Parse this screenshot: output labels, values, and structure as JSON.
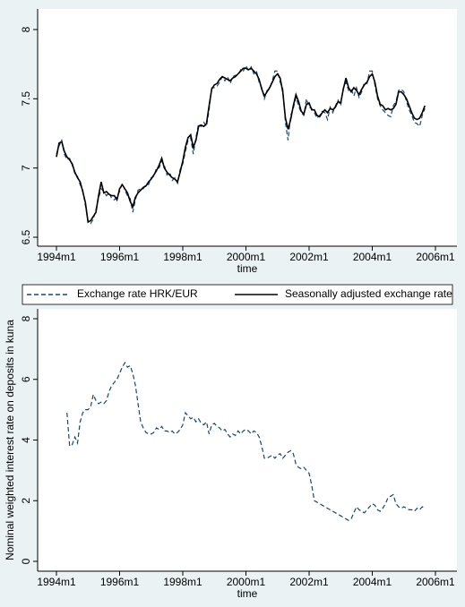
{
  "chart_data": [
    {
      "type": "line",
      "xlabel": "time",
      "x": [
        "1994m1",
        "1994m2",
        "1994m3",
        "1994m4",
        "1994m5",
        "1994m6",
        "1994m7",
        "1994m8",
        "1994m9",
        "1994m10",
        "1994m11",
        "1994m12",
        "1995m1",
        "1995m2",
        "1995m3",
        "1995m4",
        "1995m5",
        "1995m6",
        "1995m7",
        "1995m8",
        "1995m9",
        "1995m10",
        "1995m11",
        "1995m12",
        "1996m1",
        "1996m2",
        "1996m3",
        "1996m4",
        "1996m5",
        "1996m6",
        "1996m7",
        "1996m8",
        "1996m9",
        "1996m10",
        "1996m11",
        "1996m12",
        "1997m1",
        "1997m2",
        "1997m3",
        "1997m4",
        "1997m5",
        "1997m6",
        "1997m7",
        "1997m8",
        "1997m9",
        "1997m10",
        "1997m11",
        "1997m12",
        "1998m1",
        "1998m2",
        "1998m3",
        "1998m4",
        "1998m5",
        "1998m6",
        "1998m7",
        "1998m8",
        "1998m9",
        "1998m10",
        "1998m11",
        "1998m12",
        "1999m1",
        "1999m2",
        "1999m3",
        "1999m4",
        "1999m5",
        "1999m6",
        "1999m7",
        "1999m8",
        "1999m9",
        "1999m10",
        "1999m11",
        "1999m12",
        "2000m1",
        "2000m2",
        "2000m3",
        "2000m4",
        "2000m5",
        "2000m6",
        "2000m7",
        "2000m8",
        "2000m9",
        "2000m10",
        "2000m11",
        "2000m12",
        "2001m1",
        "2001m2",
        "2001m3",
        "2001m4",
        "2001m5",
        "2001m6",
        "2001m7",
        "2001m8",
        "2001m9",
        "2001m10",
        "2001m11",
        "2001m12",
        "2002m1",
        "2002m2",
        "2002m3",
        "2002m4",
        "2002m5",
        "2002m6",
        "2002m7",
        "2002m8",
        "2002m9",
        "2002m10",
        "2002m11",
        "2002m12",
        "2003m1",
        "2003m2",
        "2003m3",
        "2003m4",
        "2003m5",
        "2003m6",
        "2003m7",
        "2003m8",
        "2003m9",
        "2003m10",
        "2003m11",
        "2003m12",
        "2004m1",
        "2004m2",
        "2004m3",
        "2004m4",
        "2004m5",
        "2004m6",
        "2004m7",
        "2004m8",
        "2004m9",
        "2004m10",
        "2004m11",
        "2004m12",
        "2005m1",
        "2005m2",
        "2005m3",
        "2005m4",
        "2005m5",
        "2005m6",
        "2005m7",
        "2005m8",
        "2005m9"
      ],
      "series": [
        {
          "name": "Exchange rate HRK/EUR",
          "color": "#1a476f",
          "dash": "dashed",
          "values": [
            7.1,
            7.16,
            7.2,
            7.1,
            7.06,
            7.07,
            7.02,
            6.96,
            6.94,
            6.88,
            6.84,
            6.73,
            6.62,
            6.6,
            6.63,
            6.7,
            6.78,
            6.85,
            6.83,
            6.8,
            6.82,
            6.78,
            6.77,
            6.79,
            6.83,
            6.89,
            6.84,
            6.8,
            6.78,
            6.68,
            6.77,
            6.84,
            6.85,
            6.85,
            6.88,
            6.88,
            6.93,
            6.94,
            7.0,
            7.0,
            7.05,
            7.02,
            6.95,
            6.97,
            6.91,
            6.93,
            6.89,
            6.99,
            7.03,
            7.12,
            7.2,
            7.22,
            7.1,
            7.22,
            7.32,
            7.3,
            7.33,
            7.3,
            7.42,
            7.58,
            7.58,
            7.59,
            7.62,
            7.66,
            7.63,
            7.66,
            7.61,
            7.66,
            7.67,
            7.67,
            7.71,
            7.7,
            7.74,
            7.7,
            7.73,
            7.68,
            7.7,
            7.62,
            7.58,
            7.5,
            7.56,
            7.57,
            7.63,
            7.7,
            7.7,
            7.62,
            7.57,
            7.33,
            7.2,
            7.38,
            7.43,
            7.51,
            7.45,
            7.4,
            7.38,
            7.5,
            7.44,
            7.43,
            7.4,
            7.36,
            7.38,
            7.41,
            7.4,
            7.35,
            7.44,
            7.4,
            7.45,
            7.49,
            7.45,
            7.58,
            7.62,
            7.56,
            7.57,
            7.52,
            7.58,
            7.51,
            7.55,
            7.62,
            7.61,
            7.7,
            7.7,
            7.6,
            7.5,
            7.45,
            7.42,
            7.4,
            7.38,
            7.37,
            7.45,
            7.48,
            7.56,
            7.57,
            7.55,
            7.48,
            7.42,
            7.38,
            7.33,
            7.32,
            7.3,
            7.38,
            7.43
          ]
        },
        {
          "name": "Seasonally adjusted exchange rate",
          "color": "#000000",
          "dash": "solid",
          "values": [
            7.08,
            7.18,
            7.19,
            7.12,
            7.08,
            7.06,
            7.03,
            6.97,
            6.93,
            6.9,
            6.83,
            6.75,
            6.61,
            6.62,
            6.65,
            6.68,
            6.8,
            6.9,
            6.82,
            6.83,
            6.81,
            6.8,
            6.8,
            6.77,
            6.85,
            6.88,
            6.85,
            6.82,
            6.76,
            6.72,
            6.79,
            6.82,
            6.84,
            6.86,
            6.87,
            6.9,
            6.92,
            6.95,
            6.98,
            7.02,
            7.07,
            7.0,
            6.97,
            6.95,
            6.93,
            6.92,
            6.9,
            6.97,
            7.05,
            7.15,
            7.22,
            7.24,
            7.15,
            7.2,
            7.3,
            7.31,
            7.3,
            7.32,
            7.45,
            7.57,
            7.6,
            7.61,
            7.64,
            7.66,
            7.65,
            7.64,
            7.63,
            7.65,
            7.66,
            7.68,
            7.7,
            7.72,
            7.72,
            7.71,
            7.72,
            7.7,
            7.68,
            7.64,
            7.57,
            7.52,
            7.55,
            7.58,
            7.62,
            7.66,
            7.68,
            7.65,
            7.55,
            7.36,
            7.28,
            7.35,
            7.45,
            7.53,
            7.48,
            7.41,
            7.39,
            7.46,
            7.47,
            7.42,
            7.42,
            7.38,
            7.37,
            7.4,
            7.42,
            7.4,
            7.43,
            7.42,
            7.44,
            7.48,
            7.47,
            7.57,
            7.65,
            7.58,
            7.55,
            7.58,
            7.56,
            7.53,
            7.57,
            7.6,
            7.62,
            7.66,
            7.68,
            7.62,
            7.52,
            7.46,
            7.45,
            7.42,
            7.43,
            7.42,
            7.43,
            7.46,
            7.55,
            7.55,
            7.53,
            7.5,
            7.45,
            7.4,
            7.36,
            7.35,
            7.36,
            7.4,
            7.45
          ]
        }
      ],
      "xlim": [
        "1994m1",
        "2006m1"
      ],
      "xticks": [
        "1994m1",
        "1996m1",
        "1998m1",
        "2000m1",
        "2002m1",
        "2004m1",
        "2006m1"
      ],
      "ylim": [
        6.5,
        8
      ],
      "yticks": [
        6.5,
        7,
        7.5,
        8
      ],
      "grid": false,
      "legend": "bottom"
    },
    {
      "type": "line",
      "xlabel": "time",
      "ylabel": "Nominal weighted interest rate on deposits in kuna",
      "x": [
        "1994m5",
        "1994m6",
        "1994m7",
        "1994m8",
        "1994m9",
        "1994m10",
        "1994m11",
        "1994m12",
        "1995m1",
        "1995m2",
        "1995m3",
        "1995m4",
        "1995m5",
        "1995m6",
        "1995m7",
        "1995m8",
        "1995m9",
        "1995m10",
        "1995m11",
        "1995m12",
        "1996m1",
        "1996m2",
        "1996m3",
        "1996m4",
        "1996m5",
        "1996m6",
        "1996m7",
        "1996m8",
        "1996m9",
        "1996m10",
        "1996m11",
        "1996m12",
        "1997m1",
        "1997m2",
        "1997m3",
        "1997m4",
        "1997m5",
        "1997m6",
        "1997m7",
        "1997m8",
        "1997m9",
        "1997m10",
        "1997m11",
        "1997m12",
        "1998m1",
        "1998m2",
        "1998m3",
        "1998m4",
        "1998m5",
        "1998m6",
        "1998m7",
        "1998m8",
        "1998m9",
        "1998m10",
        "1998m11",
        "1998m12",
        "1999m1",
        "1999m2",
        "1999m3",
        "1999m4",
        "1999m5",
        "1999m6",
        "1999m7",
        "1999m8",
        "1999m9",
        "1999m10",
        "1999m11",
        "1999m12",
        "2000m1",
        "2000m2",
        "2000m3",
        "2000m4",
        "2000m5",
        "2000m6",
        "2000m7",
        "2000m8",
        "2000m9",
        "2000m10",
        "2000m11",
        "2000m12",
        "2001m1",
        "2001m2",
        "2001m3",
        "2001m4",
        "2001m5",
        "2001m6",
        "2001m7",
        "2001m8",
        "2001m9",
        "2001m10",
        "2001m11",
        "2001m12",
        "2002m1",
        "2002m2",
        "2002m3",
        "2002m4",
        "2002m5",
        "2002m6",
        "2002m7",
        "2002m8",
        "2002m9",
        "2002m10",
        "2002m11",
        "2002m12",
        "2003m1",
        "2003m2",
        "2003m3",
        "2003m4",
        "2003m5",
        "2003m6",
        "2003m7",
        "2003m8",
        "2003m9",
        "2003m10",
        "2003m11",
        "2003m12",
        "2004m1",
        "2004m2",
        "2004m3",
        "2004m4",
        "2004m5",
        "2004m6",
        "2004m7",
        "2004m8",
        "2004m9",
        "2004m10",
        "2004m11",
        "2004m12",
        "2005m1",
        "2005m2",
        "2005m3",
        "2005m4",
        "2005m5",
        "2005m6",
        "2005m7",
        "2005m8",
        "2005m9"
      ],
      "color": "#1a476f",
      "dash": "dashed",
      "values": [
        4.9,
        3.8,
        3.85,
        4.1,
        3.9,
        4.6,
        4.9,
        5.0,
        5.0,
        5.1,
        5.5,
        5.3,
        5.2,
        5.25,
        5.2,
        5.3,
        5.6,
        5.8,
        5.9,
        6.0,
        6.2,
        6.4,
        6.55,
        6.4,
        6.45,
        6.2,
        5.8,
        5.2,
        4.6,
        4.4,
        4.25,
        4.2,
        4.2,
        4.25,
        4.4,
        4.35,
        4.45,
        4.3,
        4.3,
        4.25,
        4.3,
        4.2,
        4.25,
        4.35,
        4.5,
        4.9,
        4.8,
        4.7,
        4.75,
        4.6,
        4.7,
        4.55,
        4.5,
        4.6,
        4.2,
        4.5,
        4.55,
        4.45,
        4.4,
        4.3,
        4.35,
        4.2,
        4.1,
        4.2,
        4.15,
        4.3,
        4.2,
        4.3,
        4.35,
        4.3,
        4.2,
        4.3,
        4.25,
        4.1,
        3.8,
        3.4,
        3.4,
        3.45,
        3.5,
        3.4,
        3.5,
        3.55,
        3.4,
        3.5,
        3.6,
        3.65,
        3.55,
        3.2,
        3.1,
        3.05,
        3.1,
        3.0,
        2.9,
        2.5,
        2.0,
        1.95,
        1.9,
        1.85,
        1.8,
        1.75,
        1.7,
        1.65,
        1.6,
        1.55,
        1.5,
        1.45,
        1.4,
        1.35,
        1.4,
        1.6,
        1.8,
        1.7,
        1.65,
        1.6,
        1.7,
        1.8,
        1.9,
        1.85,
        1.7,
        1.65,
        1.75,
        1.9,
        2.1,
        2.15,
        2.2,
        1.9,
        1.8,
        1.75,
        1.8,
        1.75,
        1.7,
        1.7,
        1.65,
        1.75,
        1.7,
        1.8,
        1.75
      ],
      "xlim": [
        "1994m1",
        "2006m1"
      ],
      "xticks": [
        "1994m1",
        "1996m1",
        "1998m1",
        "2000m1",
        "2002m1",
        "2004m1",
        "2006m1"
      ],
      "ylim": [
        0,
        8
      ],
      "yticks": [
        0,
        2,
        4,
        6,
        8
      ],
      "grid": false
    }
  ]
}
